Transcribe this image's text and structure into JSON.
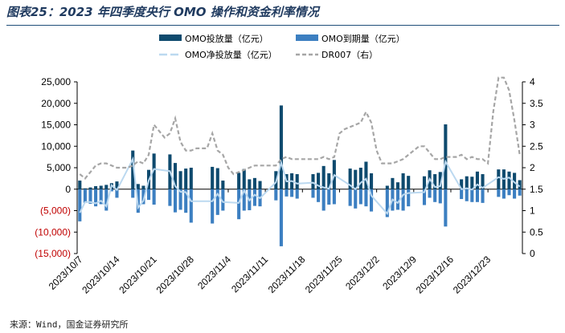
{
  "title": "图表25：2023 年四季度央行 OMO 操作和资金利率情况",
  "source": "来源：Wind，国金证券研究所",
  "colors": {
    "injection": "#0e4a6e",
    "maturity": "#3c7fc1",
    "net": "#bcd9f0",
    "dr007": "#a6a6a6",
    "negative_label": "#c00000"
  },
  "chart_data": {
    "type": "bar",
    "legend_position": "top",
    "grid": false,
    "y_left": {
      "lim": [
        -15000,
        25000
      ],
      "ticks": [
        "25,000",
        "20,000",
        "15,000",
        "10,000",
        "5,000",
        "0",
        "(5,000)",
        "(10,000)",
        "(15,000)"
      ]
    },
    "y_right": {
      "lim": [
        0,
        4
      ],
      "ticks": [
        "4",
        "3.5",
        "3",
        "2.5",
        "2",
        "1.5",
        "1",
        "0.5",
        "0"
      ]
    },
    "x_tick_labels": [
      "2023/10/7",
      "2023/10/14",
      "2023/10/21",
      "2023/10/28",
      "2023/11/4",
      "2023/11/11",
      "2023/11/18",
      "2023/11/25",
      "2023/12/2",
      "2023/12/9",
      "2023/12/16",
      "2023/12/23"
    ],
    "x": [
      "2023/10/7",
      "2023/10/8",
      "2023/10/9",
      "2023/10/10",
      "2023/10/11",
      "2023/10/12",
      "2023/10/13",
      "2023/10/14",
      "2023/10/15",
      "2023/10/16",
      "2023/10/17",
      "2023/10/18",
      "2023/10/19",
      "2023/10/20",
      "2023/10/21",
      "2023/10/22",
      "2023/10/23",
      "2023/10/24",
      "2023/10/25",
      "2023/10/26",
      "2023/10/27",
      "2023/10/28",
      "2023/10/29",
      "2023/10/30",
      "2023/10/31",
      "2023/11/1",
      "2023/11/2",
      "2023/11/3",
      "2023/11/4",
      "2023/11/5",
      "2023/11/6",
      "2023/11/7",
      "2023/11/8",
      "2023/11/9",
      "2023/11/10",
      "2023/11/11",
      "2023/11/12",
      "2023/11/13",
      "2023/11/14",
      "2023/11/15",
      "2023/11/16",
      "2023/11/17",
      "2023/11/18",
      "2023/11/19",
      "2023/11/20",
      "2023/11/21",
      "2023/11/22",
      "2023/11/23",
      "2023/11/24",
      "2023/11/25",
      "2023/11/26",
      "2023/11/27",
      "2023/11/28",
      "2023/11/29",
      "2023/11/30",
      "2023/12/1",
      "2023/12/2",
      "2023/12/3",
      "2023/12/4",
      "2023/12/5",
      "2023/12/6",
      "2023/12/7",
      "2023/12/8",
      "2023/12/9",
      "2023/12/10",
      "2023/12/11",
      "2023/12/12",
      "2023/12/13",
      "2023/12/14",
      "2023/12/15",
      "2023/12/16",
      "2023/12/17",
      "2023/12/18",
      "2023/12/19",
      "2023/12/20",
      "2023/12/21",
      "2023/12/22",
      "2023/12/23",
      "2023/12/24",
      "2023/12/25",
      "2023/12/26",
      "2023/12/27",
      "2023/12/28",
      "2023/12/29"
    ],
    "series": [
      {
        "name": "OMO投放量（亿元）",
        "type": "bar",
        "axis": "left",
        "values": [
          2000,
          200,
          400,
          700,
          800,
          1000,
          1400,
          1800,
          null,
          null,
          9000,
          1200,
          800,
          4500,
          8300,
          null,
          null,
          8100,
          6100,
          4200,
          4800,
          5000,
          null,
          null,
          null,
          5200,
          4900,
          2000,
          null,
          null,
          3800,
          4700,
          2300,
          2600,
          1900,
          null,
          null,
          4200,
          19500,
          3500,
          3700,
          3500,
          null,
          null,
          3500,
          3800,
          5400,
          3700,
          6800,
          null,
          null,
          4800,
          4500,
          5000,
          6400,
          3700,
          null,
          null,
          800,
          2600,
          1600,
          3700,
          3100,
          null,
          null,
          3000,
          4400,
          3500,
          4000,
          15100,
          null,
          null,
          2300,
          3000,
          2900,
          4100,
          3500,
          null,
          null,
          4600,
          4600,
          4100,
          3800,
          2100
        ]
      },
      {
        "name": "OMO到期量（亿元）",
        "type": "bar",
        "axis": "left",
        "values": [
          -7500,
          -3200,
          -3400,
          -4000,
          -3500,
          -5000,
          -500,
          -2000,
          null,
          null,
          -2000,
          -5500,
          -3500,
          -2500,
          -3600,
          null,
          null,
          -3900,
          -5400,
          -4800,
          -5500,
          -7800,
          null,
          null,
          null,
          -8000,
          -6000,
          -5000,
          null,
          null,
          -7000,
          -5000,
          -4900,
          -3900,
          -4000,
          null,
          null,
          -2600,
          -13300,
          -1700,
          -1800,
          -2200,
          null,
          null,
          -2000,
          -3000,
          -5000,
          -3600,
          -3500,
          null,
          null,
          -3900,
          -4500,
          -3500,
          -4000,
          -5200,
          null,
          null,
          -6500,
          -5000,
          -4800,
          -5000,
          -4000,
          null,
          null,
          -3700,
          -2000,
          -3000,
          -3300,
          -8700,
          null,
          null,
          -2300,
          -2800,
          -3000,
          -3000,
          -3200,
          null,
          null,
          -1800,
          -2200,
          -1400,
          -2200,
          -1500
        ]
      },
      {
        "name": "OMO净投放量（亿元）",
        "type": "line",
        "axis": "left",
        "values": [
          -5500,
          -3000,
          -3000,
          -3300,
          -2700,
          -4000,
          900,
          -200,
          null,
          null,
          7000,
          -4300,
          -2700,
          2000,
          4700,
          null,
          null,
          4200,
          700,
          -600,
          -700,
          -2800,
          null,
          null,
          null,
          -2800,
          -1100,
          -3000,
          null,
          null,
          -3200,
          -300,
          -2600,
          -1300,
          -2100,
          null,
          null,
          1600,
          6200,
          1800,
          1900,
          1300,
          null,
          null,
          1500,
          800,
          400,
          100,
          3300,
          null,
          null,
          900,
          0,
          1500,
          2400,
          -1500,
          null,
          null,
          -5700,
          -2400,
          -3200,
          -1300,
          -900,
          null,
          null,
          -700,
          2400,
          500,
          700,
          6400,
          null,
          null,
          0,
          200,
          -100,
          1100,
          300,
          null,
          null,
          2800,
          2400,
          2700,
          1600,
          600
        ]
      },
      {
        "name": "DR007（右）",
        "type": "line",
        "axis": "right",
        "values": [
          1.85,
          1.75,
          1.9,
          2.05,
          2.1,
          2.1,
          2.05,
          2.0,
          2.0,
          2.0,
          2.05,
          2.15,
          2.1,
          2.3,
          3.0,
          2.85,
          2.7,
          2.8,
          3.15,
          2.6,
          2.4,
          2.4,
          2.45,
          2.45,
          2.45,
          2.8,
          2.4,
          2.3,
          2.0,
          1.85,
          1.9,
          1.95,
          2.0,
          2.05,
          2.05,
          2.05,
          2.05,
          2.05,
          2.2,
          2.25,
          2.2,
          2.2,
          2.2,
          2.2,
          2.2,
          2.2,
          2.25,
          2.2,
          2.25,
          2.8,
          2.9,
          2.95,
          3.0,
          3.05,
          3.3,
          3.05,
          2.4,
          2.1,
          2.1,
          2.1,
          2.15,
          2.2,
          2.3,
          2.4,
          2.5,
          2.5,
          2.35,
          2.2,
          2.2,
          2.25,
          2.25,
          2.25,
          2.3,
          2.2,
          2.25,
          2.2,
          2.2,
          2.1,
          3.3,
          4.1,
          4.1,
          3.8,
          3.1,
          2.3
        ]
      }
    ]
  }
}
